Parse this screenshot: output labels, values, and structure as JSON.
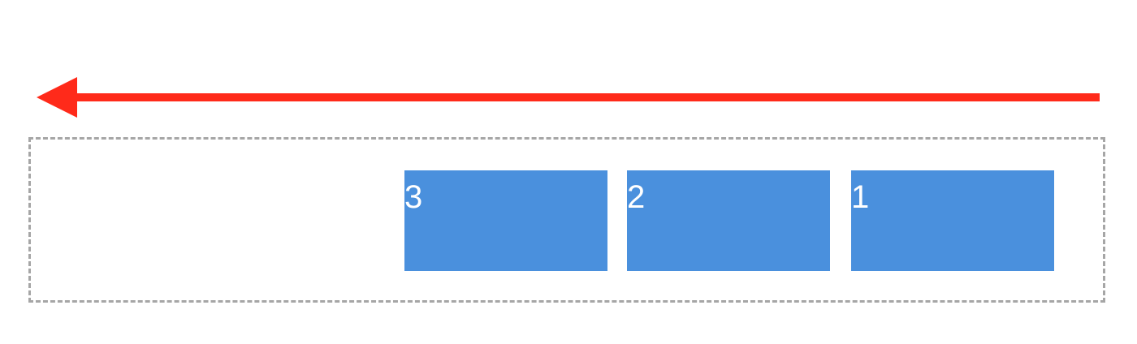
{
  "arrow": {
    "direction": "left",
    "color": "#ff2a1a"
  },
  "container": {
    "border_style": "dashed",
    "border_color": "#a6a6a6"
  },
  "items": [
    {
      "label": "3",
      "color": "#4a90dd"
    },
    {
      "label": "2",
      "color": "#4a90dd"
    },
    {
      "label": "1",
      "color": "#4a90dd"
    }
  ]
}
